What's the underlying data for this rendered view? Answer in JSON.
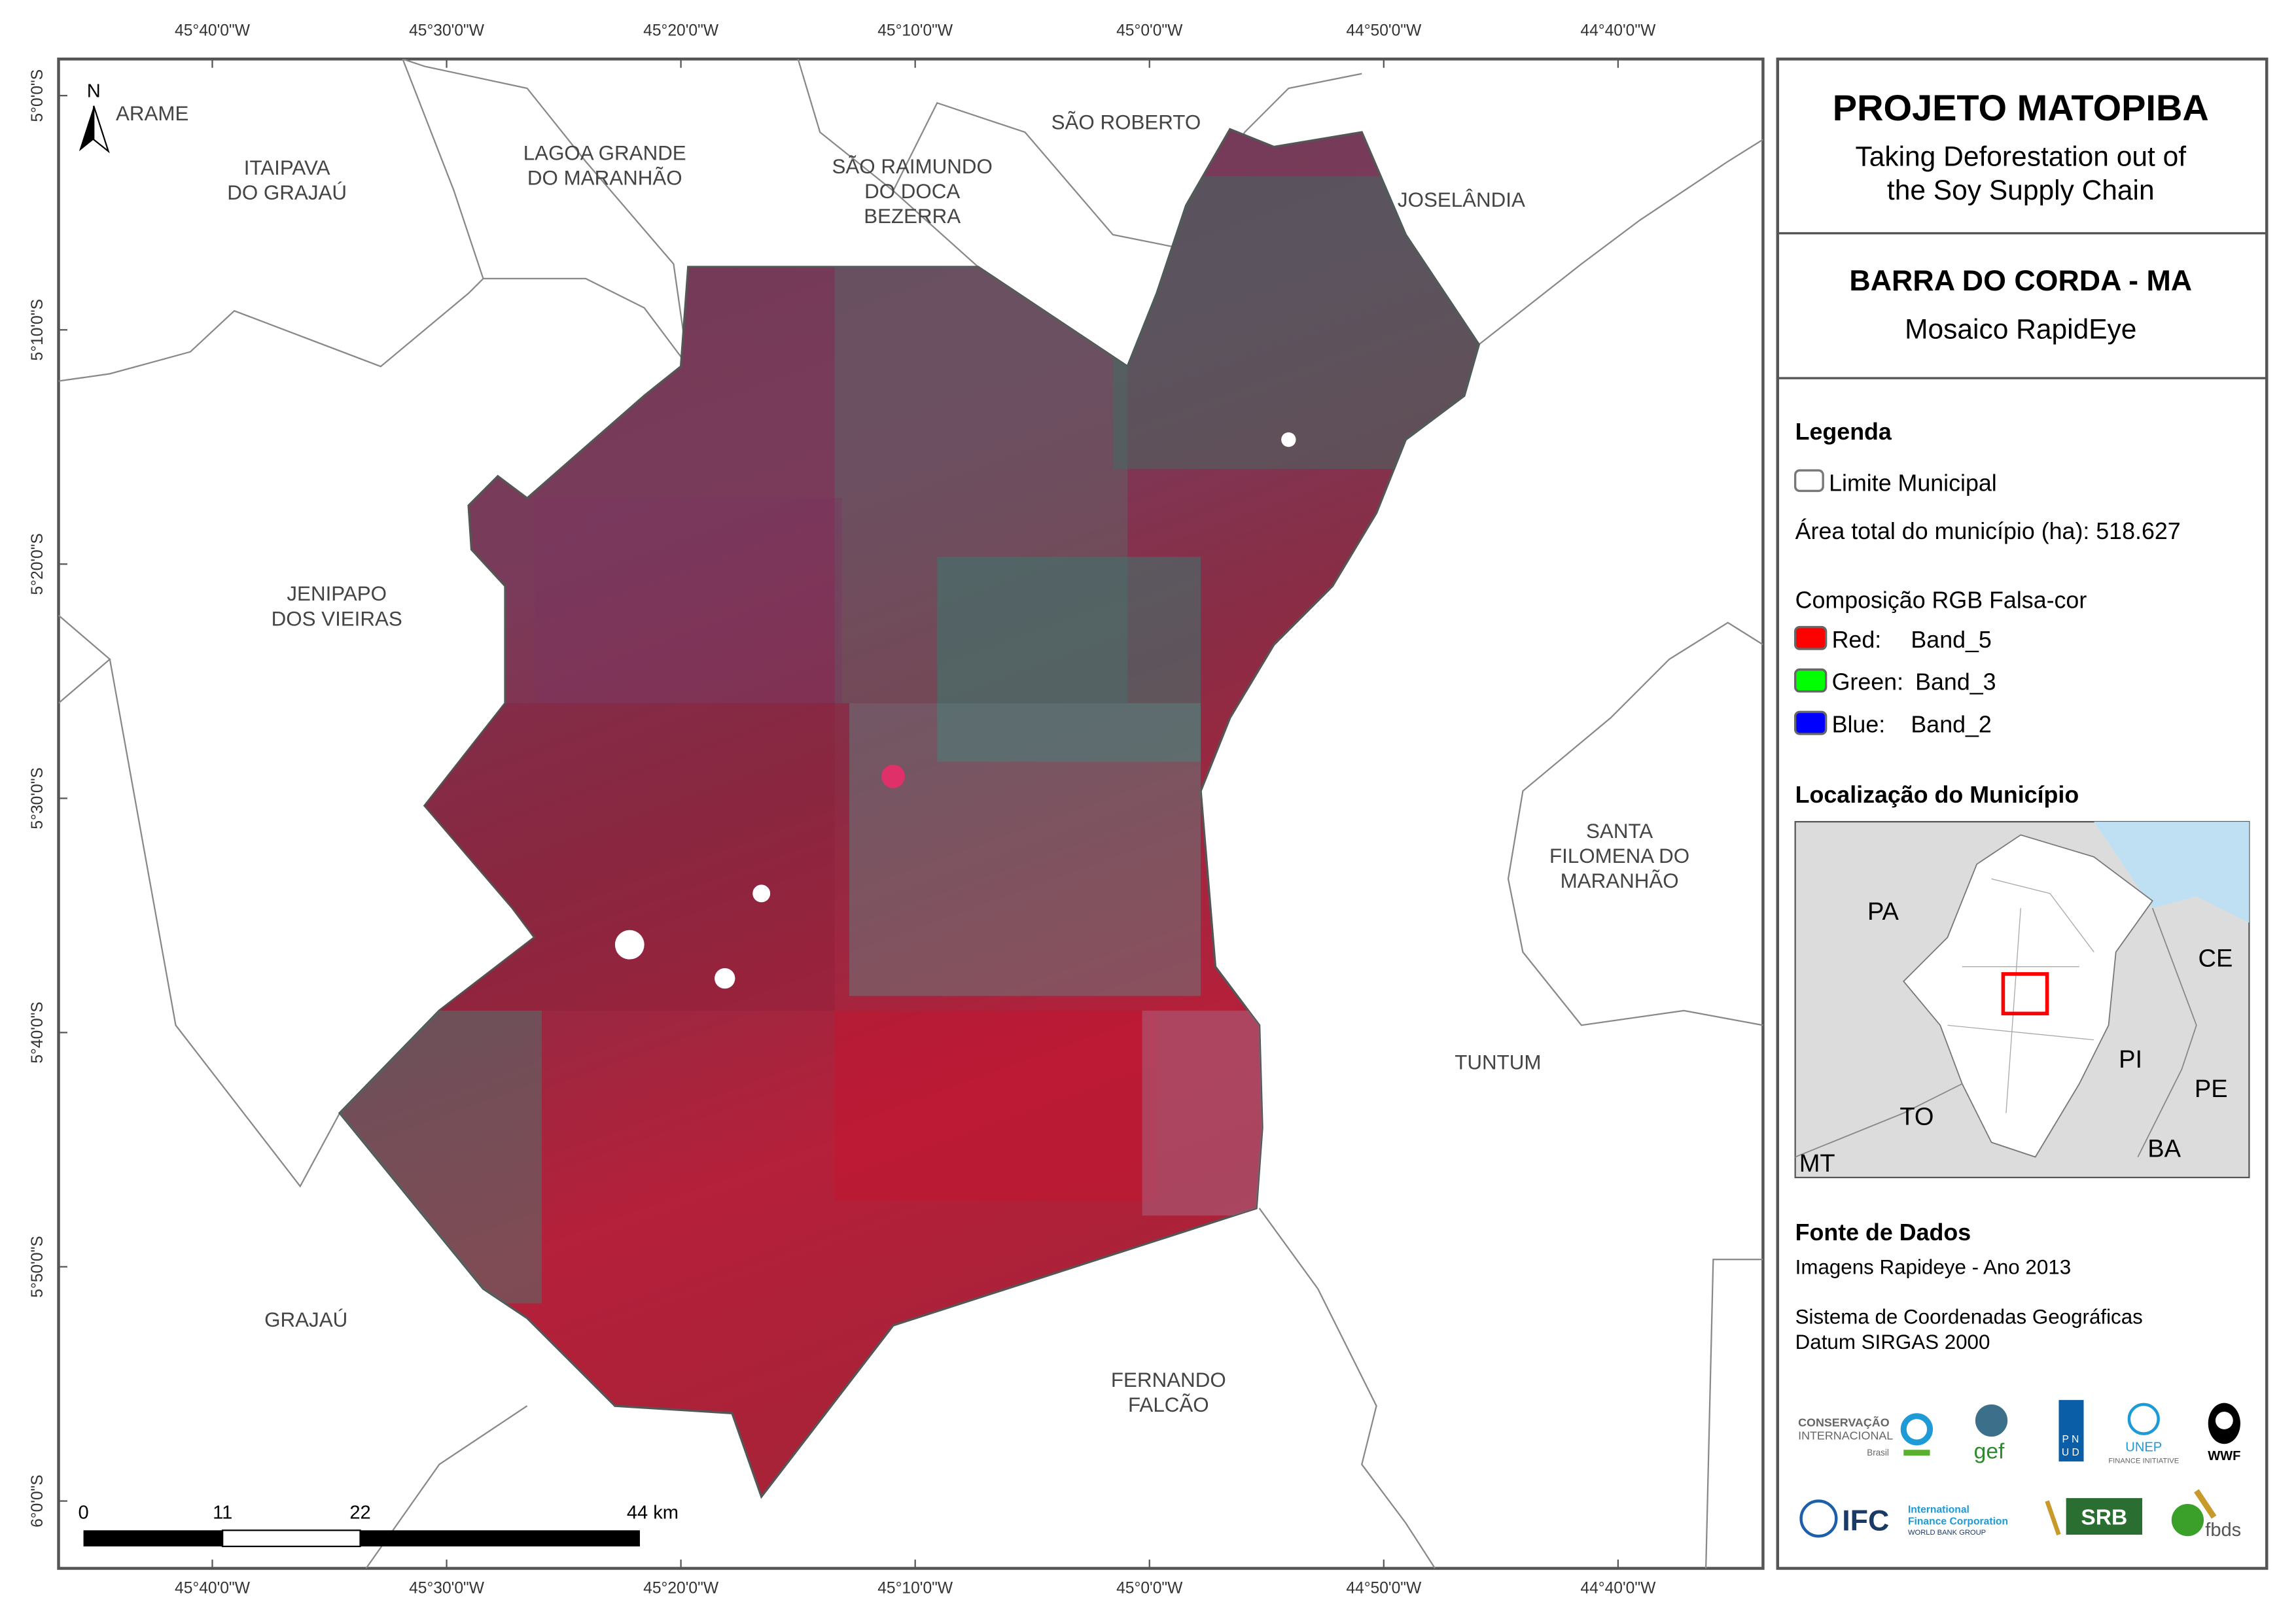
{
  "header": {
    "title": "PROJETO MATOPIBA",
    "subtitle_line1": "Taking Deforestation out of",
    "subtitle_line2": "the Soy Supply Chain"
  },
  "map_info": {
    "title": "BARRA DO CORDA - MA",
    "subtitle": "Mosaico RapidEye"
  },
  "legend": {
    "heading": "Legenda",
    "boundary_label": "Limite Municipal",
    "area_label": "Área total do município (ha): 518.627",
    "rgb_heading": "Composição RGB Falsa-cor",
    "bands": [
      {
        "channel": "Red:",
        "band": "Band_5",
        "color": "#ff0000"
      },
      {
        "channel": "Green:",
        "band": "Band_3",
        "color": "#00ff00"
      },
      {
        "channel": "Blue:",
        "band": "Band_2",
        "color": "#0000ff"
      }
    ]
  },
  "location": {
    "heading": "Localização do Município",
    "states": [
      "PA",
      "CE",
      "PI",
      "TO",
      "PE",
      "BA",
      "MT"
    ],
    "highlight_color": "#ff0000",
    "ocean_color": "#bfe0f2"
  },
  "sources": {
    "heading": "Fonte de Dados",
    "imagery": "Imagens Rapideye - Ano 2013",
    "crs_line1": "Sistema de Coordenadas Geográficas",
    "crs_line2": "Datum SIRGAS 2000"
  },
  "logos": [
    "CONSERVAÇÃO INTERNACIONAL Brasil",
    "gef",
    "PNUD",
    "UNEP FINANCE INITIATIVE",
    "WWF",
    "IFC International Finance Corporation WORLD BANK GROUP",
    "SRB SOCIEDADE RURAL BRASILEIRA",
    "fbds"
  ],
  "map": {
    "north_label": "N",
    "lon_ticks": [
      "45°40'0\"W",
      "45°30'0\"W",
      "45°20'0\"W",
      "45°10'0\"W",
      "45°0'0\"W",
      "44°50'0\"W",
      "44°40'0\"W"
    ],
    "lat_ticks": [
      "5°0'0\"S",
      "5°10'0\"S",
      "5°20'0\"S",
      "5°30'0\"S",
      "5°40'0\"S",
      "5°50'0\"S",
      "6°0'0\"S"
    ],
    "scale": [
      "0",
      "11",
      "22",
      "44 km"
    ],
    "municipalities": [
      [
        "ARAME"
      ],
      [
        "ITAIPAVA",
        "DO GRAJAÚ"
      ],
      [
        "LAGOA GRANDE",
        "DO MARANHÃO"
      ],
      [
        "SÃO RAIMUNDO",
        "DO DOCA",
        "BEZERRA"
      ],
      [
        "SÃO ROBERTO"
      ],
      [
        "JOSELÂNDIA"
      ],
      [
        "JENIPAPO",
        "DOS VIEIRAS"
      ],
      [
        "SANTA",
        "FILOMENA DO",
        "MARANHÃO"
      ],
      [
        "TUNTUM"
      ],
      [
        "GRAJAÚ"
      ],
      [
        "FERNANDO",
        "FALCÃO"
      ]
    ]
  }
}
